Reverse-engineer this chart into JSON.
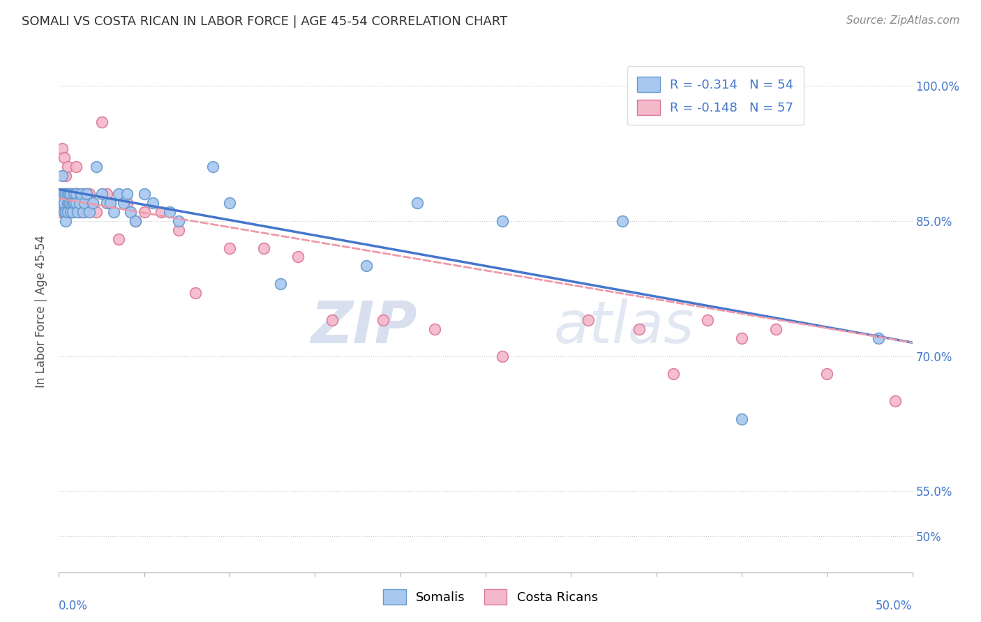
{
  "title": "SOMALI VS COSTA RICAN IN LABOR FORCE | AGE 45-54 CORRELATION CHART",
  "source": "Source: ZipAtlas.com",
  "ylabel": "In Labor Force | Age 45-54",
  "ytick_vals": [
    0.5,
    0.55,
    0.7,
    0.85,
    1.0
  ],
  "ytick_labels": [
    "50%",
    "55.0%",
    "70.0%",
    "85.0%",
    "100.0%"
  ],
  "xlim": [
    0.0,
    0.5
  ],
  "ylim": [
    0.46,
    1.04
  ],
  "somali_color": "#a8c8f0",
  "costa_rican_color": "#f4b8cb",
  "somali_edge_color": "#6699cc",
  "costa_rican_edge_color": "#dd7799",
  "trend_somali_color": "#4477cc",
  "trend_costa_rican_color": "#ee99aa",
  "R_somali": -0.314,
  "N_somali": 54,
  "R_costa": -0.148,
  "N_costa": 57,
  "watermark_zip": "ZIP",
  "watermark_atlas": "atlas",
  "somali_x": [
    0.001,
    0.002,
    0.002,
    0.003,
    0.003,
    0.003,
    0.004,
    0.004,
    0.004,
    0.005,
    0.005,
    0.005,
    0.006,
    0.006,
    0.007,
    0.007,
    0.007,
    0.008,
    0.008,
    0.009,
    0.009,
    0.01,
    0.01,
    0.011,
    0.012,
    0.013,
    0.014,
    0.015,
    0.016,
    0.018,
    0.02,
    0.022,
    0.025,
    0.028,
    0.03,
    0.032,
    0.035,
    0.038,
    0.04,
    0.042,
    0.045,
    0.05,
    0.055,
    0.065,
    0.07,
    0.09,
    0.1,
    0.13,
    0.18,
    0.21,
    0.26,
    0.33,
    0.4,
    0.48
  ],
  "somali_y": [
    0.88,
    0.9,
    0.87,
    0.88,
    0.86,
    0.87,
    0.88,
    0.86,
    0.85,
    0.88,
    0.87,
    0.86,
    0.88,
    0.87,
    0.88,
    0.86,
    0.87,
    0.87,
    0.86,
    0.88,
    0.87,
    0.88,
    0.87,
    0.86,
    0.87,
    0.88,
    0.86,
    0.87,
    0.88,
    0.86,
    0.87,
    0.91,
    0.88,
    0.87,
    0.87,
    0.86,
    0.88,
    0.87,
    0.88,
    0.86,
    0.85,
    0.88,
    0.87,
    0.86,
    0.85,
    0.91,
    0.87,
    0.78,
    0.8,
    0.87,
    0.85,
    0.85,
    0.63,
    0.72
  ],
  "costa_x": [
    0.001,
    0.001,
    0.002,
    0.002,
    0.002,
    0.003,
    0.003,
    0.003,
    0.004,
    0.004,
    0.005,
    0.005,
    0.005,
    0.006,
    0.006,
    0.007,
    0.007,
    0.008,
    0.008,
    0.009,
    0.009,
    0.01,
    0.01,
    0.011,
    0.012,
    0.013,
    0.014,
    0.015,
    0.016,
    0.018,
    0.02,
    0.022,
    0.025,
    0.028,
    0.03,
    0.035,
    0.04,
    0.045,
    0.05,
    0.06,
    0.07,
    0.08,
    0.1,
    0.12,
    0.14,
    0.16,
    0.19,
    0.22,
    0.26,
    0.31,
    0.34,
    0.36,
    0.38,
    0.4,
    0.42,
    0.45,
    0.49
  ],
  "costa_y": [
    0.87,
    0.86,
    0.88,
    0.93,
    0.87,
    0.92,
    0.88,
    0.86,
    0.9,
    0.87,
    0.91,
    0.88,
    0.86,
    0.87,
    0.86,
    0.88,
    0.86,
    0.87,
    0.86,
    0.88,
    0.87,
    0.91,
    0.88,
    0.88,
    0.86,
    0.87,
    0.88,
    0.86,
    0.88,
    0.88,
    0.87,
    0.86,
    0.96,
    0.88,
    0.87,
    0.83,
    0.87,
    0.85,
    0.86,
    0.86,
    0.84,
    0.77,
    0.82,
    0.82,
    0.81,
    0.74,
    0.74,
    0.73,
    0.7,
    0.74,
    0.73,
    0.68,
    0.74,
    0.72,
    0.73,
    0.68,
    0.65
  ],
  "somali_trend_x": [
    0.0,
    0.5
  ],
  "somali_trend_y": [
    0.885,
    0.715
  ],
  "costa_trend_x": [
    0.0,
    0.5
  ],
  "costa_trend_y": [
    0.875,
    0.715
  ]
}
